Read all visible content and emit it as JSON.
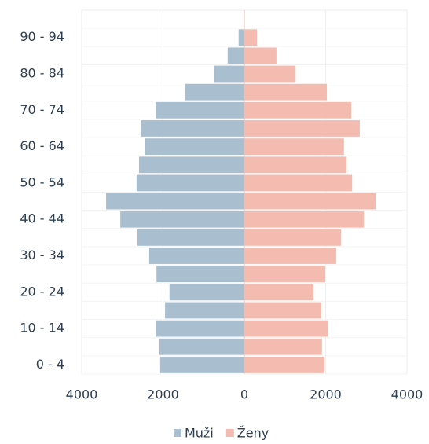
{
  "chart_data": {
    "type": "pyramid",
    "categories": [
      "0 - 4",
      null,
      "10 - 14",
      null,
      "20 - 24",
      null,
      "30 - 34",
      null,
      "40 - 44",
      null,
      "50 - 54",
      null,
      "60 - 64",
      null,
      "70 - 74",
      null,
      "80 - 84",
      null,
      "90 - 94",
      null
    ],
    "series": [
      {
        "name": "Muži",
        "color": "#a9bfcf",
        "values": [
          -2070,
          -2090,
          -2180,
          -1950,
          -1840,
          -2160,
          -2340,
          -2630,
          -3050,
          -3400,
          -2650,
          -2590,
          -2450,
          -2550,
          -2180,
          -1450,
          -750,
          -410,
          -140,
          -10
        ]
      },
      {
        "name": "Ženy",
        "color": "#f4bcb0",
        "values": [
          1970,
          1910,
          2050,
          1890,
          1700,
          1990,
          2260,
          2380,
          2940,
          3230,
          2650,
          2510,
          2450,
          2840,
          2630,
          2030,
          1260,
          790,
          310,
          10
        ]
      }
    ],
    "xlim": [
      -4000,
      4000
    ],
    "xticks": [
      {
        "value": -4000,
        "label": "4000"
      },
      {
        "value": -2000,
        "label": "2000"
      },
      0,
      2000,
      4000
    ],
    "grid": true,
    "legend": "bottom"
  }
}
